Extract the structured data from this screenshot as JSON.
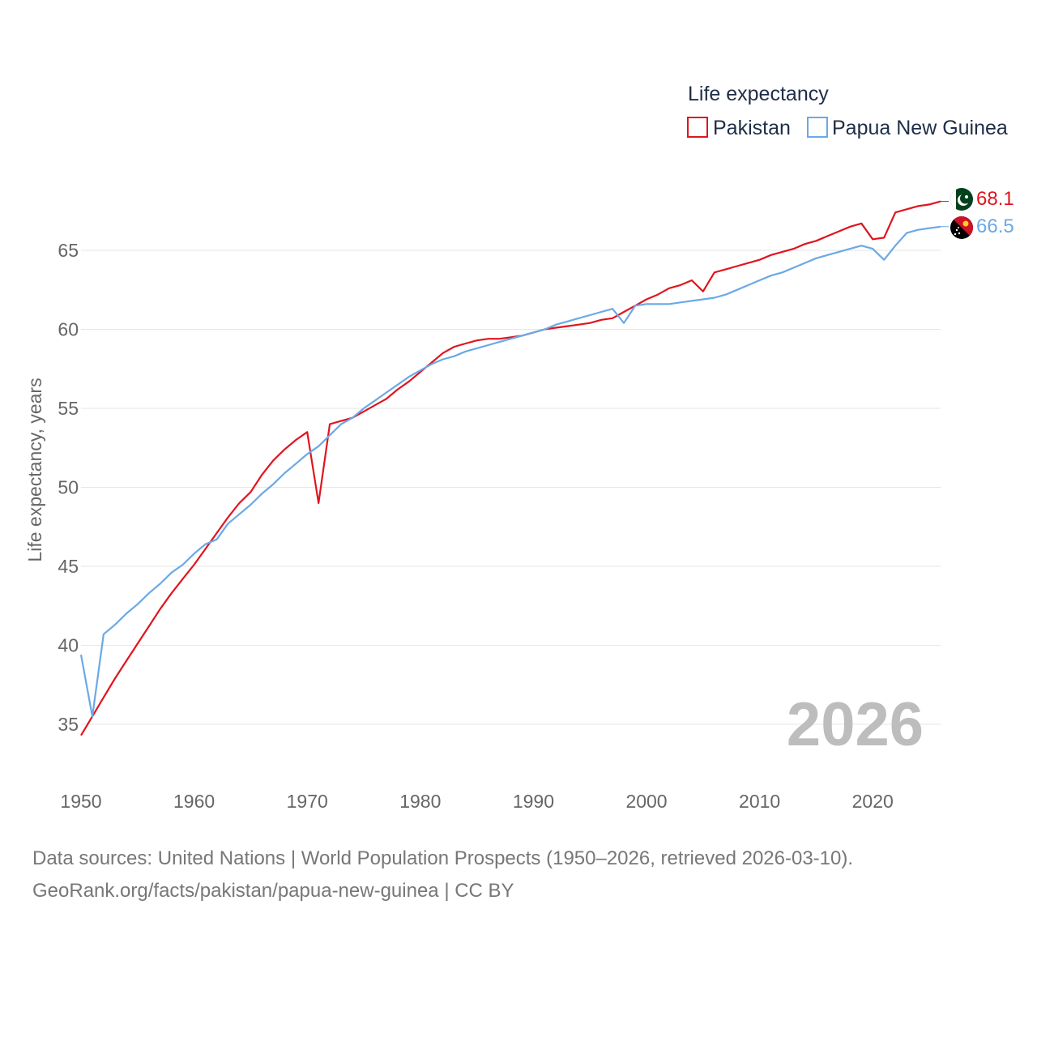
{
  "colors": {
    "pakistan": "#e0141e",
    "png": "#6aa9e6",
    "grid": "#e6e6e6"
  },
  "legend": {
    "title": "Life expectancy",
    "items": [
      "Pakistan",
      "Papua New Guinea"
    ]
  },
  "year_label": "2026",
  "source": {
    "line1": "Data sources: United Nations | World Population Prospects (1950–2026, retrieved 2026-03-10).",
    "line2": "GeoRank.org/facts/pakistan/papua-new-guinea | CC BY"
  },
  "chart_data": {
    "type": "line",
    "title": "Life expectancy",
    "xlabel": "",
    "ylabel": "Life expectancy, years",
    "xlim": [
      1950,
      2026
    ],
    "ylim": [
      33.5,
      68.5
    ],
    "xticks": [
      1950,
      1960,
      1970,
      1980,
      1990,
      2000,
      2010,
      2020
    ],
    "yticks": [
      35,
      40,
      45,
      50,
      55,
      60,
      65
    ],
    "grid": true,
    "legend_position": "top-right",
    "x": [
      1950,
      1951,
      1952,
      1953,
      1954,
      1955,
      1956,
      1957,
      1958,
      1959,
      1960,
      1961,
      1962,
      1963,
      1964,
      1965,
      1966,
      1967,
      1968,
      1969,
      1970,
      1971,
      1972,
      1973,
      1974,
      1975,
      1976,
      1977,
      1978,
      1979,
      1980,
      1981,
      1982,
      1983,
      1984,
      1985,
      1986,
      1987,
      1988,
      1989,
      1990,
      1991,
      1992,
      1993,
      1994,
      1995,
      1996,
      1997,
      1998,
      1999,
      2000,
      2001,
      2002,
      2003,
      2004,
      2005,
      2006,
      2007,
      2008,
      2009,
      2010,
      2011,
      2012,
      2013,
      2014,
      2015,
      2016,
      2017,
      2018,
      2019,
      2020,
      2021,
      2022,
      2023,
      2024,
      2025,
      2026
    ],
    "series": [
      {
        "name": "Pakistan",
        "end_label": "68.1",
        "values": [
          34.3,
          35.5,
          36.7,
          37.9,
          39.0,
          40.1,
          41.2,
          42.3,
          43.3,
          44.2,
          45.1,
          46.1,
          47.1,
          48.1,
          49.0,
          49.7,
          50.8,
          51.7,
          52.4,
          53.0,
          53.5,
          49.0,
          54.0,
          54.2,
          54.4,
          54.8,
          55.2,
          55.6,
          56.2,
          56.7,
          57.3,
          57.9,
          58.5,
          58.9,
          59.1,
          59.3,
          59.4,
          59.4,
          59.5,
          59.6,
          59.8,
          60.0,
          60.1,
          60.2,
          60.3,
          60.4,
          60.6,
          60.7,
          61.1,
          61.5,
          61.9,
          62.2,
          62.6,
          62.8,
          63.1,
          62.4,
          63.6,
          63.8,
          64.0,
          64.2,
          64.4,
          64.7,
          64.9,
          65.1,
          65.4,
          65.6,
          65.9,
          66.2,
          66.5,
          66.7,
          65.7,
          65.8,
          67.4,
          67.6,
          67.8,
          67.9,
          68.1
        ]
      },
      {
        "name": "Papua New Guinea",
        "end_label": "66.5",
        "values": [
          39.4,
          35.5,
          40.7,
          41.3,
          42.0,
          42.6,
          43.3,
          43.9,
          44.6,
          45.1,
          45.8,
          46.4,
          46.7,
          47.7,
          48.3,
          48.9,
          49.6,
          50.2,
          50.9,
          51.5,
          52.1,
          52.6,
          53.3,
          54.0,
          54.4,
          55.0,
          55.5,
          56.0,
          56.5,
          57.0,
          57.4,
          57.8,
          58.1,
          58.3,
          58.6,
          58.8,
          59.0,
          59.2,
          59.4,
          59.6,
          59.8,
          60.0,
          60.3,
          60.5,
          60.7,
          60.9,
          61.1,
          61.3,
          60.4,
          61.5,
          61.6,
          61.6,
          61.6,
          61.7,
          61.8,
          61.9,
          62.0,
          62.2,
          62.5,
          62.8,
          63.1,
          63.4,
          63.6,
          63.9,
          64.2,
          64.5,
          64.7,
          64.9,
          65.1,
          65.3,
          65.1,
          64.4,
          65.3,
          66.1,
          66.3,
          66.4,
          66.5
        ]
      }
    ]
  }
}
